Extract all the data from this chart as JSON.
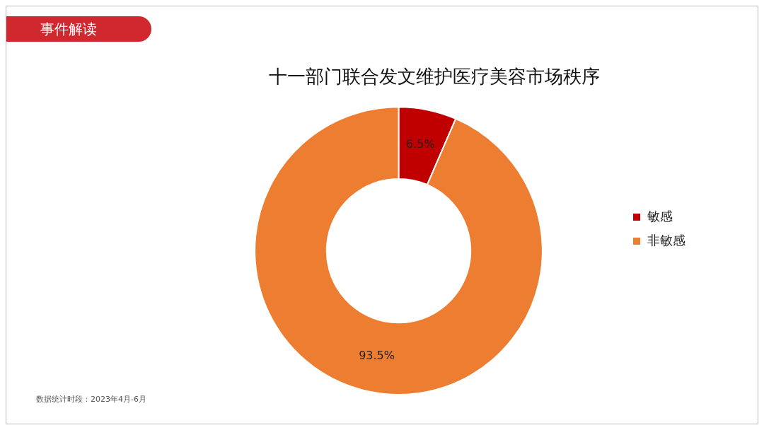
{
  "chart_data": {
    "type": "donut",
    "title": "十一部门联合发文维护医疗美容市场秩序",
    "categories": [
      "敏感",
      "非敏感"
    ],
    "values": [
      6.5,
      93.5
    ],
    "colors": [
      "#c00000",
      "#ed7d31"
    ],
    "value_labels": [
      "6.5%",
      "93.5%"
    ],
    "legend": "right",
    "annotations": [
      "事件解读",
      "数据统计时段：2023年4月-6月"
    ]
  }
}
